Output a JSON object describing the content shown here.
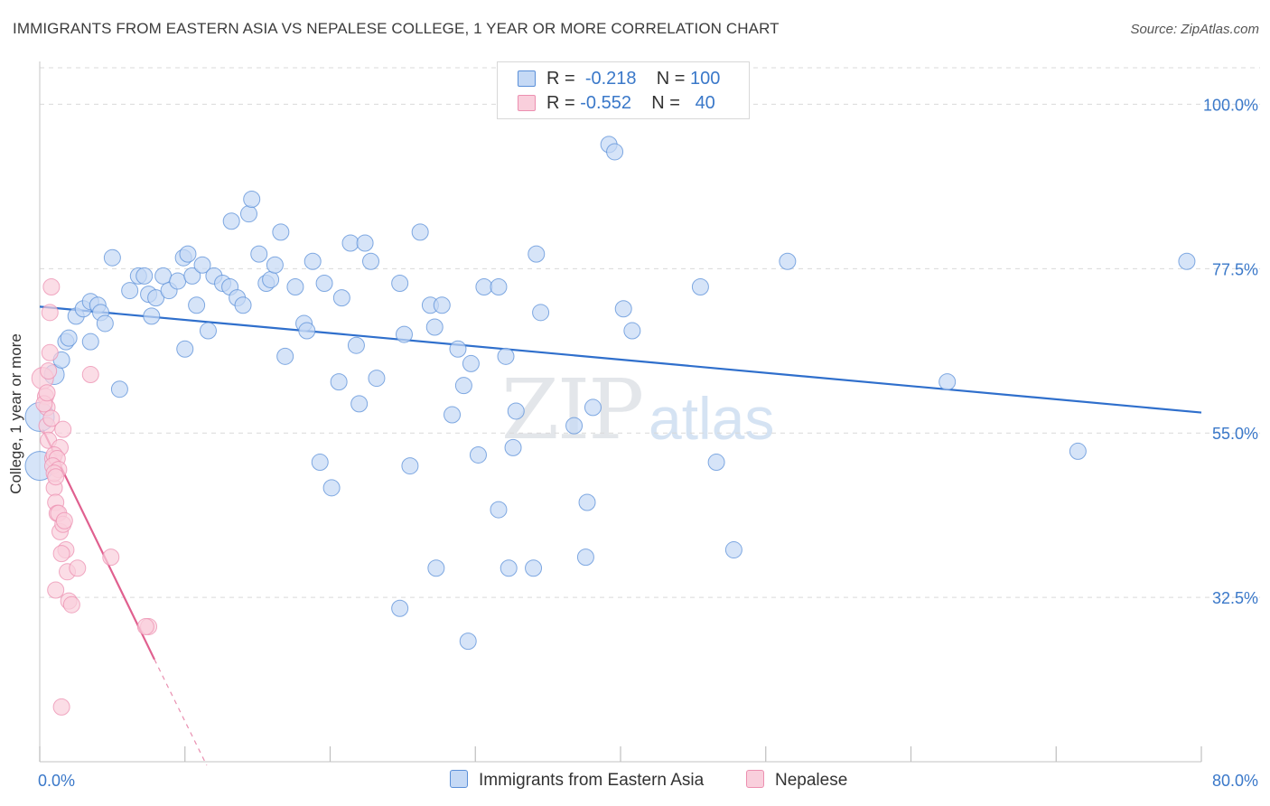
{
  "title": "IMMIGRANTS FROM EASTERN ASIA VS NEPALESE COLLEGE, 1 YEAR OR MORE CORRELATION CHART",
  "source": "Source: ZipAtlas.com",
  "watermark": {
    "zip": "ZIP",
    "atlas": "atlas"
  },
  "colors": {
    "blue": "#5a8fd8",
    "blue_fill": "#c5d9f5",
    "blue_line": "#2f6fcc",
    "pink": "#ec8fb0",
    "pink_fill": "#f9cfdc",
    "pink_line": "#e0608f",
    "grid": "#d9d9d9",
    "axis_text": "#3a78c9"
  },
  "legend": {
    "rows": [
      {
        "r_label": "R =",
        "r_value": "-0.218",
        "n_label": "N =",
        "n_value": "100"
      },
      {
        "r_label": "R =",
        "r_value": "-0.552",
        "n_label": "N =",
        "n_value": "40"
      }
    ]
  },
  "bottom_legend": [
    "Immigrants from Eastern Asia",
    "Nepalese"
  ],
  "chart_data": {
    "type": "scatter",
    "title": "IMMIGRANTS FROM EASTERN ASIA VS NEPALESE COLLEGE, 1 YEAR OR MORE CORRELATION CHART",
    "xlabel": "",
    "ylabel": "College, 1 year or more",
    "xlim": [
      0,
      80
    ],
    "ylim": [
      10,
      105
    ],
    "x_tick_labels": [
      "0.0%",
      "80.0%"
    ],
    "y_ticks": [
      32.5,
      55.0,
      77.5,
      100.0
    ],
    "y_tick_labels": [
      "32.5%",
      "55.0%",
      "77.5%",
      "100.0%"
    ],
    "grid": true,
    "legend_position": "top-center",
    "series": [
      {
        "name": "Immigrants from Eastern Asia",
        "color": "#5a8fd8",
        "trend": {
          "x": [
            0,
            80
          ],
          "y": [
            72.3,
            57.8
          ]
        },
        "points": [
          [
            0.0,
            57.2
          ],
          [
            0.0,
            50.5
          ],
          [
            1.0,
            63.0
          ],
          [
            1.5,
            65.0
          ],
          [
            1.8,
            67.5
          ],
          [
            2.0,
            68.0
          ],
          [
            2.5,
            71.0
          ],
          [
            3.0,
            72.0
          ],
          [
            3.5,
            73.0
          ],
          [
            4.0,
            72.5
          ],
          [
            4.2,
            71.5
          ],
          [
            4.5,
            70.0
          ],
          [
            3.5,
            67.5
          ],
          [
            5.0,
            79.0
          ],
          [
            5.5,
            61.0
          ],
          [
            6.2,
            74.5
          ],
          [
            6.8,
            76.5
          ],
          [
            7.2,
            76.5
          ],
          [
            7.5,
            74.0
          ],
          [
            7.7,
            71.0
          ],
          [
            8.0,
            73.5
          ],
          [
            8.5,
            76.5
          ],
          [
            8.9,
            74.5
          ],
          [
            9.5,
            75.8
          ],
          [
            9.9,
            79.0
          ],
          [
            10.2,
            79.5
          ],
          [
            10.5,
            76.5
          ],
          [
            10.8,
            72.5
          ],
          [
            10.0,
            66.5
          ],
          [
            11.2,
            78.0
          ],
          [
            11.6,
            69.0
          ],
          [
            12.0,
            76.5
          ],
          [
            12.6,
            75.5
          ],
          [
            13.1,
            75.0
          ],
          [
            13.6,
            73.5
          ],
          [
            14.0,
            72.5
          ],
          [
            13.2,
            84.0
          ],
          [
            14.4,
            85.0
          ],
          [
            14.6,
            87.0
          ],
          [
            15.1,
            79.5
          ],
          [
            15.6,
            75.5
          ],
          [
            15.9,
            76.0
          ],
          [
            16.2,
            78.0
          ],
          [
            16.6,
            82.5
          ],
          [
            16.9,
            65.5
          ],
          [
            17.6,
            75.0
          ],
          [
            18.2,
            70.0
          ],
          [
            18.4,
            69.0
          ],
          [
            18.8,
            78.5
          ],
          [
            19.3,
            51.0
          ],
          [
            19.6,
            75.5
          ],
          [
            20.1,
            47.5
          ],
          [
            20.6,
            62.0
          ],
          [
            20.8,
            73.5
          ],
          [
            21.4,
            81.0
          ],
          [
            21.8,
            67.0
          ],
          [
            22.0,
            59.0
          ],
          [
            22.4,
            81.0
          ],
          [
            22.8,
            78.5
          ],
          [
            23.2,
            62.5
          ],
          [
            24.8,
            75.5
          ],
          [
            25.1,
            68.5
          ],
          [
            25.5,
            50.5
          ],
          [
            26.2,
            82.5
          ],
          [
            26.9,
            72.5
          ],
          [
            27.2,
            69.5
          ],
          [
            27.7,
            72.5
          ],
          [
            28.4,
            57.5
          ],
          [
            28.8,
            66.5
          ],
          [
            29.2,
            61.5
          ],
          [
            29.7,
            64.5
          ],
          [
            30.2,
            52.0
          ],
          [
            30.6,
            75.0
          ],
          [
            31.6,
            75.0
          ],
          [
            31.6,
            44.5
          ],
          [
            32.1,
            65.5
          ],
          [
            32.6,
            53.0
          ],
          [
            32.8,
            58.0
          ],
          [
            34.0,
            36.5
          ],
          [
            34.2,
            79.5
          ],
          [
            34.5,
            71.5
          ],
          [
            32.3,
            36.5
          ],
          [
            27.3,
            36.5
          ],
          [
            24.8,
            31.0
          ],
          [
            29.5,
            26.5
          ],
          [
            36.8,
            56.0
          ],
          [
            37.6,
            38.0
          ],
          [
            37.7,
            45.5
          ],
          [
            38.1,
            58.5
          ],
          [
            39.2,
            94.5
          ],
          [
            39.6,
            93.5
          ],
          [
            40.2,
            72.0
          ],
          [
            40.8,
            69.0
          ],
          [
            45.5,
            75.0
          ],
          [
            46.6,
            51.0
          ],
          [
            47.8,
            39.0
          ],
          [
            51.5,
            78.5
          ],
          [
            62.5,
            62.0
          ],
          [
            71.5,
            52.5
          ],
          [
            79.0,
            78.5
          ]
        ]
      },
      {
        "name": "Nepalese",
        "color": "#ec8fb0",
        "trend": {
          "x": [
            0.2,
            7.9
          ],
          "y": [
            55.5,
            24.0
          ]
        },
        "trend_dashed": {
          "x": [
            7.9,
            11.5
          ],
          "y": [
            24.0,
            9.5
          ]
        },
        "points": [
          [
            0.2,
            62.5
          ],
          [
            0.4,
            60.0
          ],
          [
            0.5,
            58.5
          ],
          [
            0.6,
            63.5
          ],
          [
            0.7,
            66.0
          ],
          [
            0.7,
            71.5
          ],
          [
            0.8,
            75.0
          ],
          [
            0.5,
            56.0
          ],
          [
            0.6,
            54.0
          ],
          [
            0.9,
            51.5
          ],
          [
            1.0,
            47.5
          ],
          [
            1.1,
            45.5
          ],
          [
            1.2,
            44.0
          ],
          [
            1.3,
            44.0
          ],
          [
            1.4,
            41.5
          ],
          [
            1.6,
            42.5
          ],
          [
            1.7,
            43.0
          ],
          [
            1.8,
            39.0
          ],
          [
            1.5,
            38.5
          ],
          [
            1.9,
            36.0
          ],
          [
            2.0,
            32.0
          ],
          [
            2.2,
            31.5
          ],
          [
            2.6,
            36.5
          ],
          [
            4.9,
            38.0
          ],
          [
            7.5,
            28.5
          ],
          [
            7.3,
            28.5
          ],
          [
            1.4,
            53.0
          ],
          [
            1.0,
            52.0
          ],
          [
            1.2,
            51.5
          ],
          [
            0.9,
            50.5
          ],
          [
            1.3,
            50.0
          ],
          [
            1.0,
            49.5
          ],
          [
            1.1,
            49.0
          ],
          [
            1.5,
            17.5
          ],
          [
            3.5,
            63.0
          ],
          [
            0.3,
            59.0
          ],
          [
            0.5,
            60.5
          ],
          [
            0.8,
            57.0
          ],
          [
            1.6,
            55.5
          ],
          [
            1.1,
            33.5
          ]
        ]
      }
    ]
  }
}
